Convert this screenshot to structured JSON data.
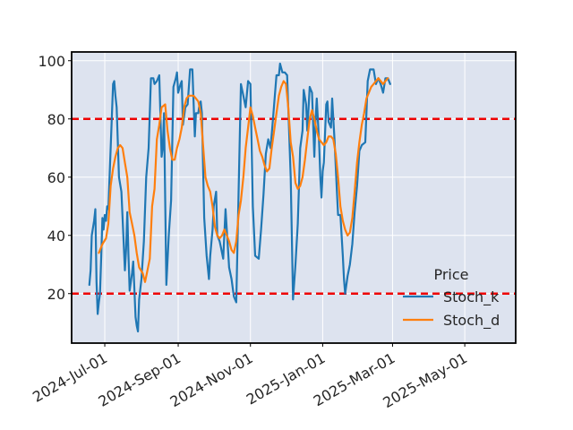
{
  "chart_data": {
    "type": "line",
    "title": "",
    "xlabel": "",
    "ylabel": "",
    "xlim": [
      "2024-06-03",
      "2025-06-13"
    ],
    "ylim": [
      3,
      103
    ],
    "grid": true,
    "x_ticks": [
      {
        "date": "2024-07-01",
        "label": "2024-Jul-01"
      },
      {
        "date": "2024-09-01",
        "label": "2024-Sep-01"
      },
      {
        "date": "2024-11-01",
        "label": "2024-Nov-01"
      },
      {
        "date": "2025-01-01",
        "label": "2025-Jan-01"
      },
      {
        "date": "2025-03-01",
        "label": "2025-Mar-01"
      },
      {
        "date": "2025-05-01",
        "label": "2025-May-01"
      }
    ],
    "y_ticks": [
      20,
      40,
      60,
      80,
      100
    ],
    "reference_lines": [
      {
        "y": 80,
        "color": "#ee0000",
        "style": "dashed"
      },
      {
        "y": 20,
        "color": "#ee0000",
        "style": "dashed"
      }
    ],
    "legend": {
      "title": "Price",
      "position": "bottom-right"
    },
    "series": [
      {
        "name": "Stoch_k",
        "color": "#1f77b4",
        "points": [
          [
            "2024-06-18",
            23
          ],
          [
            "2024-06-19",
            28
          ],
          [
            "2024-06-20",
            40
          ],
          [
            "2024-06-22",
            45
          ],
          [
            "2024-06-23",
            49
          ],
          [
            "2024-06-24",
            24
          ],
          [
            "2024-06-25",
            13
          ],
          [
            "2024-06-26",
            17
          ],
          [
            "2024-06-27",
            20
          ],
          [
            "2024-06-28",
            33
          ],
          [
            "2024-06-29",
            46
          ],
          [
            "2024-06-30",
            42
          ],
          [
            "2024-07-01",
            47
          ],
          [
            "2024-07-02",
            45
          ],
          [
            "2024-07-03",
            50
          ],
          [
            "2024-07-04",
            49
          ],
          [
            "2024-07-06",
            70
          ],
          [
            "2024-07-08",
            92
          ],
          [
            "2024-07-09",
            93
          ],
          [
            "2024-07-10",
            88
          ],
          [
            "2024-07-11",
            84
          ],
          [
            "2024-07-12",
            72
          ],
          [
            "2024-07-13",
            60
          ],
          [
            "2024-07-15",
            55
          ],
          [
            "2024-07-17",
            37
          ],
          [
            "2024-07-18",
            28
          ],
          [
            "2024-07-19",
            35
          ],
          [
            "2024-07-20",
            48
          ],
          [
            "2024-07-21",
            33
          ],
          [
            "2024-07-22",
            21
          ],
          [
            "2024-07-24",
            27
          ],
          [
            "2024-07-25",
            31
          ],
          [
            "2024-07-27",
            12
          ],
          [
            "2024-07-28",
            9
          ],
          [
            "2024-07-29",
            7
          ],
          [
            "2024-07-30",
            18
          ],
          [
            "2024-08-01",
            25
          ],
          [
            "2024-08-03",
            38
          ],
          [
            "2024-08-05",
            60
          ],
          [
            "2024-08-07",
            70
          ],
          [
            "2024-08-09",
            94
          ],
          [
            "2024-08-11",
            94
          ],
          [
            "2024-08-12",
            92
          ],
          [
            "2024-08-14",
            93
          ],
          [
            "2024-08-16",
            95
          ],
          [
            "2024-08-18",
            67
          ],
          [
            "2024-08-19",
            70
          ],
          [
            "2024-08-20",
            82
          ],
          [
            "2024-08-22",
            23
          ],
          [
            "2024-08-24",
            40
          ],
          [
            "2024-08-26",
            52
          ],
          [
            "2024-08-28",
            91
          ],
          [
            "2024-08-30",
            94
          ],
          [
            "2024-08-31",
            96
          ],
          [
            "2024-09-01",
            89
          ],
          [
            "2024-09-03",
            92
          ],
          [
            "2024-09-04",
            93
          ],
          [
            "2024-09-05",
            78
          ],
          [
            "2024-09-07",
            84
          ],
          [
            "2024-09-09",
            85
          ],
          [
            "2024-09-11",
            97
          ],
          [
            "2024-09-13",
            97
          ],
          [
            "2024-09-15",
            74
          ],
          [
            "2024-09-16",
            82
          ],
          [
            "2024-09-18",
            82
          ],
          [
            "2024-09-19",
            85
          ],
          [
            "2024-09-20",
            86
          ],
          [
            "2024-09-21",
            82
          ],
          [
            "2024-09-23",
            46
          ],
          [
            "2024-09-25",
            33
          ],
          [
            "2024-09-27",
            25
          ],
          [
            "2024-09-28",
            33
          ],
          [
            "2024-09-30",
            42
          ],
          [
            "2024-10-01",
            50
          ],
          [
            "2024-10-03",
            55
          ],
          [
            "2024-10-04",
            40
          ],
          [
            "2024-10-06",
            38
          ],
          [
            "2024-10-07",
            36
          ],
          [
            "2024-10-09",
            32
          ],
          [
            "2024-10-11",
            49
          ],
          [
            "2024-10-12",
            42
          ],
          [
            "2024-10-14",
            29
          ],
          [
            "2024-10-16",
            25
          ],
          [
            "2024-10-18",
            19
          ],
          [
            "2024-10-20",
            17
          ],
          [
            "2024-10-22",
            55
          ],
          [
            "2024-10-24",
            92
          ],
          [
            "2024-10-26",
            88
          ],
          [
            "2024-10-28",
            84
          ],
          [
            "2024-10-30",
            93
          ],
          [
            "2024-11-01",
            92
          ],
          [
            "2024-11-03",
            50
          ],
          [
            "2024-11-05",
            33
          ],
          [
            "2024-11-08",
            32
          ],
          [
            "2024-11-10",
            42
          ],
          [
            "2024-11-12",
            54
          ],
          [
            "2024-11-14",
            68
          ],
          [
            "2024-11-16",
            73
          ],
          [
            "2024-11-18",
            70
          ],
          [
            "2024-11-20",
            80
          ],
          [
            "2024-11-23",
            95
          ],
          [
            "2024-11-25",
            95
          ],
          [
            "2024-11-26",
            99
          ],
          [
            "2024-11-28",
            96
          ],
          [
            "2024-11-30",
            96
          ],
          [
            "2024-12-02",
            95
          ],
          [
            "2024-12-05",
            60
          ],
          [
            "2024-12-07",
            18
          ],
          [
            "2024-12-09",
            30
          ],
          [
            "2024-12-11",
            44
          ],
          [
            "2024-12-13",
            70
          ],
          [
            "2024-12-15",
            76
          ],
          [
            "2024-12-16",
            90
          ],
          [
            "2024-12-18",
            85
          ],
          [
            "2024-12-19",
            76
          ],
          [
            "2024-12-20",
            83
          ],
          [
            "2024-12-21",
            91
          ],
          [
            "2024-12-23",
            89
          ],
          [
            "2024-12-25",
            67
          ],
          [
            "2024-12-26",
            80
          ],
          [
            "2024-12-27",
            87
          ],
          [
            "2024-12-29",
            72
          ],
          [
            "2024-12-30",
            60
          ],
          [
            "2024-12-31",
            53
          ],
          [
            "2025-01-01",
            62
          ],
          [
            "2025-01-02",
            65
          ],
          [
            "2025-01-04",
            85
          ],
          [
            "2025-01-05",
            86
          ],
          [
            "2025-01-06",
            79
          ],
          [
            "2025-01-08",
            77
          ],
          [
            "2025-01-09",
            87
          ],
          [
            "2025-01-11",
            73
          ],
          [
            "2025-01-13",
            55
          ],
          [
            "2025-01-14",
            47
          ],
          [
            "2025-01-16",
            47
          ],
          [
            "2025-01-18",
            33
          ],
          [
            "2025-01-19",
            25
          ],
          [
            "2025-01-20",
            20
          ],
          [
            "2025-01-22",
            26
          ],
          [
            "2025-01-24",
            30
          ],
          [
            "2025-01-26",
            37
          ],
          [
            "2025-01-28",
            48
          ],
          [
            "2025-01-30",
            57
          ],
          [
            "2025-02-01",
            69
          ],
          [
            "2025-02-03",
            71
          ],
          [
            "2025-02-06",
            72
          ],
          [
            "2025-02-08",
            93
          ],
          [
            "2025-02-10",
            97
          ],
          [
            "2025-02-13",
            97
          ],
          [
            "2025-02-15",
            92
          ],
          [
            "2025-02-17",
            94
          ],
          [
            "2025-02-19",
            92
          ],
          [
            "2025-02-21",
            89
          ],
          [
            "2025-02-23",
            94
          ],
          [
            "2025-02-25",
            94
          ],
          [
            "2025-02-27",
            92
          ]
        ]
      },
      {
        "name": "Stoch_d",
        "color": "#ff7f0e",
        "points": [
          [
            "2024-06-26",
            34
          ],
          [
            "2024-06-29",
            37
          ],
          [
            "2024-07-02",
            39
          ],
          [
            "2024-07-04",
            44
          ],
          [
            "2024-07-06",
            57
          ],
          [
            "2024-07-08",
            63
          ],
          [
            "2024-07-10",
            67
          ],
          [
            "2024-07-12",
            70
          ],
          [
            "2024-07-14",
            71
          ],
          [
            "2024-07-16",
            70
          ],
          [
            "2024-07-18",
            65
          ],
          [
            "2024-07-20",
            60
          ],
          [
            "2024-07-22",
            48
          ],
          [
            "2024-07-24",
            44
          ],
          [
            "2024-07-26",
            40
          ],
          [
            "2024-07-28",
            34
          ],
          [
            "2024-07-30",
            29
          ],
          [
            "2024-08-02",
            27
          ],
          [
            "2024-08-04",
            24
          ],
          [
            "2024-08-06",
            28
          ],
          [
            "2024-08-08",
            32
          ],
          [
            "2024-08-10",
            50
          ],
          [
            "2024-08-12",
            56
          ],
          [
            "2024-08-14",
            73
          ],
          [
            "2024-08-16",
            78
          ],
          [
            "2024-08-18",
            84
          ],
          [
            "2024-08-21",
            85
          ],
          [
            "2024-08-23",
            76
          ],
          [
            "2024-08-25",
            70
          ],
          [
            "2024-08-27",
            66
          ],
          [
            "2024-08-29",
            66
          ],
          [
            "2024-08-31",
            70
          ],
          [
            "2024-09-02",
            73
          ],
          [
            "2024-09-04",
            77
          ],
          [
            "2024-09-06",
            84
          ],
          [
            "2024-09-08",
            87
          ],
          [
            "2024-09-10",
            88
          ],
          [
            "2024-09-12",
            88
          ],
          [
            "2024-09-14",
            88
          ],
          [
            "2024-09-16",
            87
          ],
          [
            "2024-09-18",
            86
          ],
          [
            "2024-09-20",
            82
          ],
          [
            "2024-09-22",
            71
          ],
          [
            "2024-09-24",
            60
          ],
          [
            "2024-09-26",
            57
          ],
          [
            "2024-09-28",
            55
          ],
          [
            "2024-09-30",
            50
          ],
          [
            "2024-10-02",
            43
          ],
          [
            "2024-10-04",
            40
          ],
          [
            "2024-10-06",
            39
          ],
          [
            "2024-10-08",
            40
          ],
          [
            "2024-10-10",
            42
          ],
          [
            "2024-10-12",
            40
          ],
          [
            "2024-10-14",
            38
          ],
          [
            "2024-10-16",
            35
          ],
          [
            "2024-10-18",
            34
          ],
          [
            "2024-10-20",
            38
          ],
          [
            "2024-10-22",
            47
          ],
          [
            "2024-10-24",
            52
          ],
          [
            "2024-10-26",
            60
          ],
          [
            "2024-10-28",
            70
          ],
          [
            "2024-10-30",
            77
          ],
          [
            "2024-11-01",
            84
          ],
          [
            "2024-11-03",
            81
          ],
          [
            "2024-11-05",
            77
          ],
          [
            "2024-11-07",
            73
          ],
          [
            "2024-11-09",
            69
          ],
          [
            "2024-11-11",
            67
          ],
          [
            "2024-11-13",
            64
          ],
          [
            "2024-11-15",
            62
          ],
          [
            "2024-11-17",
            63
          ],
          [
            "2024-11-19",
            70
          ],
          [
            "2024-11-21",
            76
          ],
          [
            "2024-11-23",
            82
          ],
          [
            "2024-11-25",
            88
          ],
          [
            "2024-11-27",
            91
          ],
          [
            "2024-11-29",
            93
          ],
          [
            "2024-12-01",
            92
          ],
          [
            "2024-12-03",
            84
          ],
          [
            "2024-12-05",
            72
          ],
          [
            "2024-12-07",
            67
          ],
          [
            "2024-12-09",
            58
          ],
          [
            "2024-12-11",
            56
          ],
          [
            "2024-12-13",
            57
          ],
          [
            "2024-12-15",
            60
          ],
          [
            "2024-12-17",
            66
          ],
          [
            "2024-12-19",
            73
          ],
          [
            "2024-12-21",
            80
          ],
          [
            "2024-12-23",
            83
          ],
          [
            "2024-12-25",
            80
          ],
          [
            "2024-12-27",
            76
          ],
          [
            "2024-12-29",
            73
          ],
          [
            "2024-12-31",
            72
          ],
          [
            "2025-01-02",
            71
          ],
          [
            "2025-01-04",
            72
          ],
          [
            "2025-01-06",
            74
          ],
          [
            "2025-01-08",
            74
          ],
          [
            "2025-01-10",
            73
          ],
          [
            "2025-01-12",
            68
          ],
          [
            "2025-01-14",
            60
          ],
          [
            "2025-01-16",
            50
          ],
          [
            "2025-01-18",
            45
          ],
          [
            "2025-01-20",
            42
          ],
          [
            "2025-01-22",
            40
          ],
          [
            "2025-01-24",
            41
          ],
          [
            "2025-01-26",
            46
          ],
          [
            "2025-01-28",
            55
          ],
          [
            "2025-01-30",
            65
          ],
          [
            "2025-02-01",
            72
          ],
          [
            "2025-02-03",
            78
          ],
          [
            "2025-02-05",
            82
          ],
          [
            "2025-02-07",
            87
          ],
          [
            "2025-02-09",
            89
          ],
          [
            "2025-02-11",
            91
          ],
          [
            "2025-02-13",
            92
          ],
          [
            "2025-02-15",
            93
          ],
          [
            "2025-02-17",
            94
          ],
          [
            "2025-02-19",
            93
          ],
          [
            "2025-02-21",
            92
          ],
          [
            "2025-02-23",
            93
          ],
          [
            "2025-02-25",
            94
          ]
        ]
      }
    ]
  }
}
